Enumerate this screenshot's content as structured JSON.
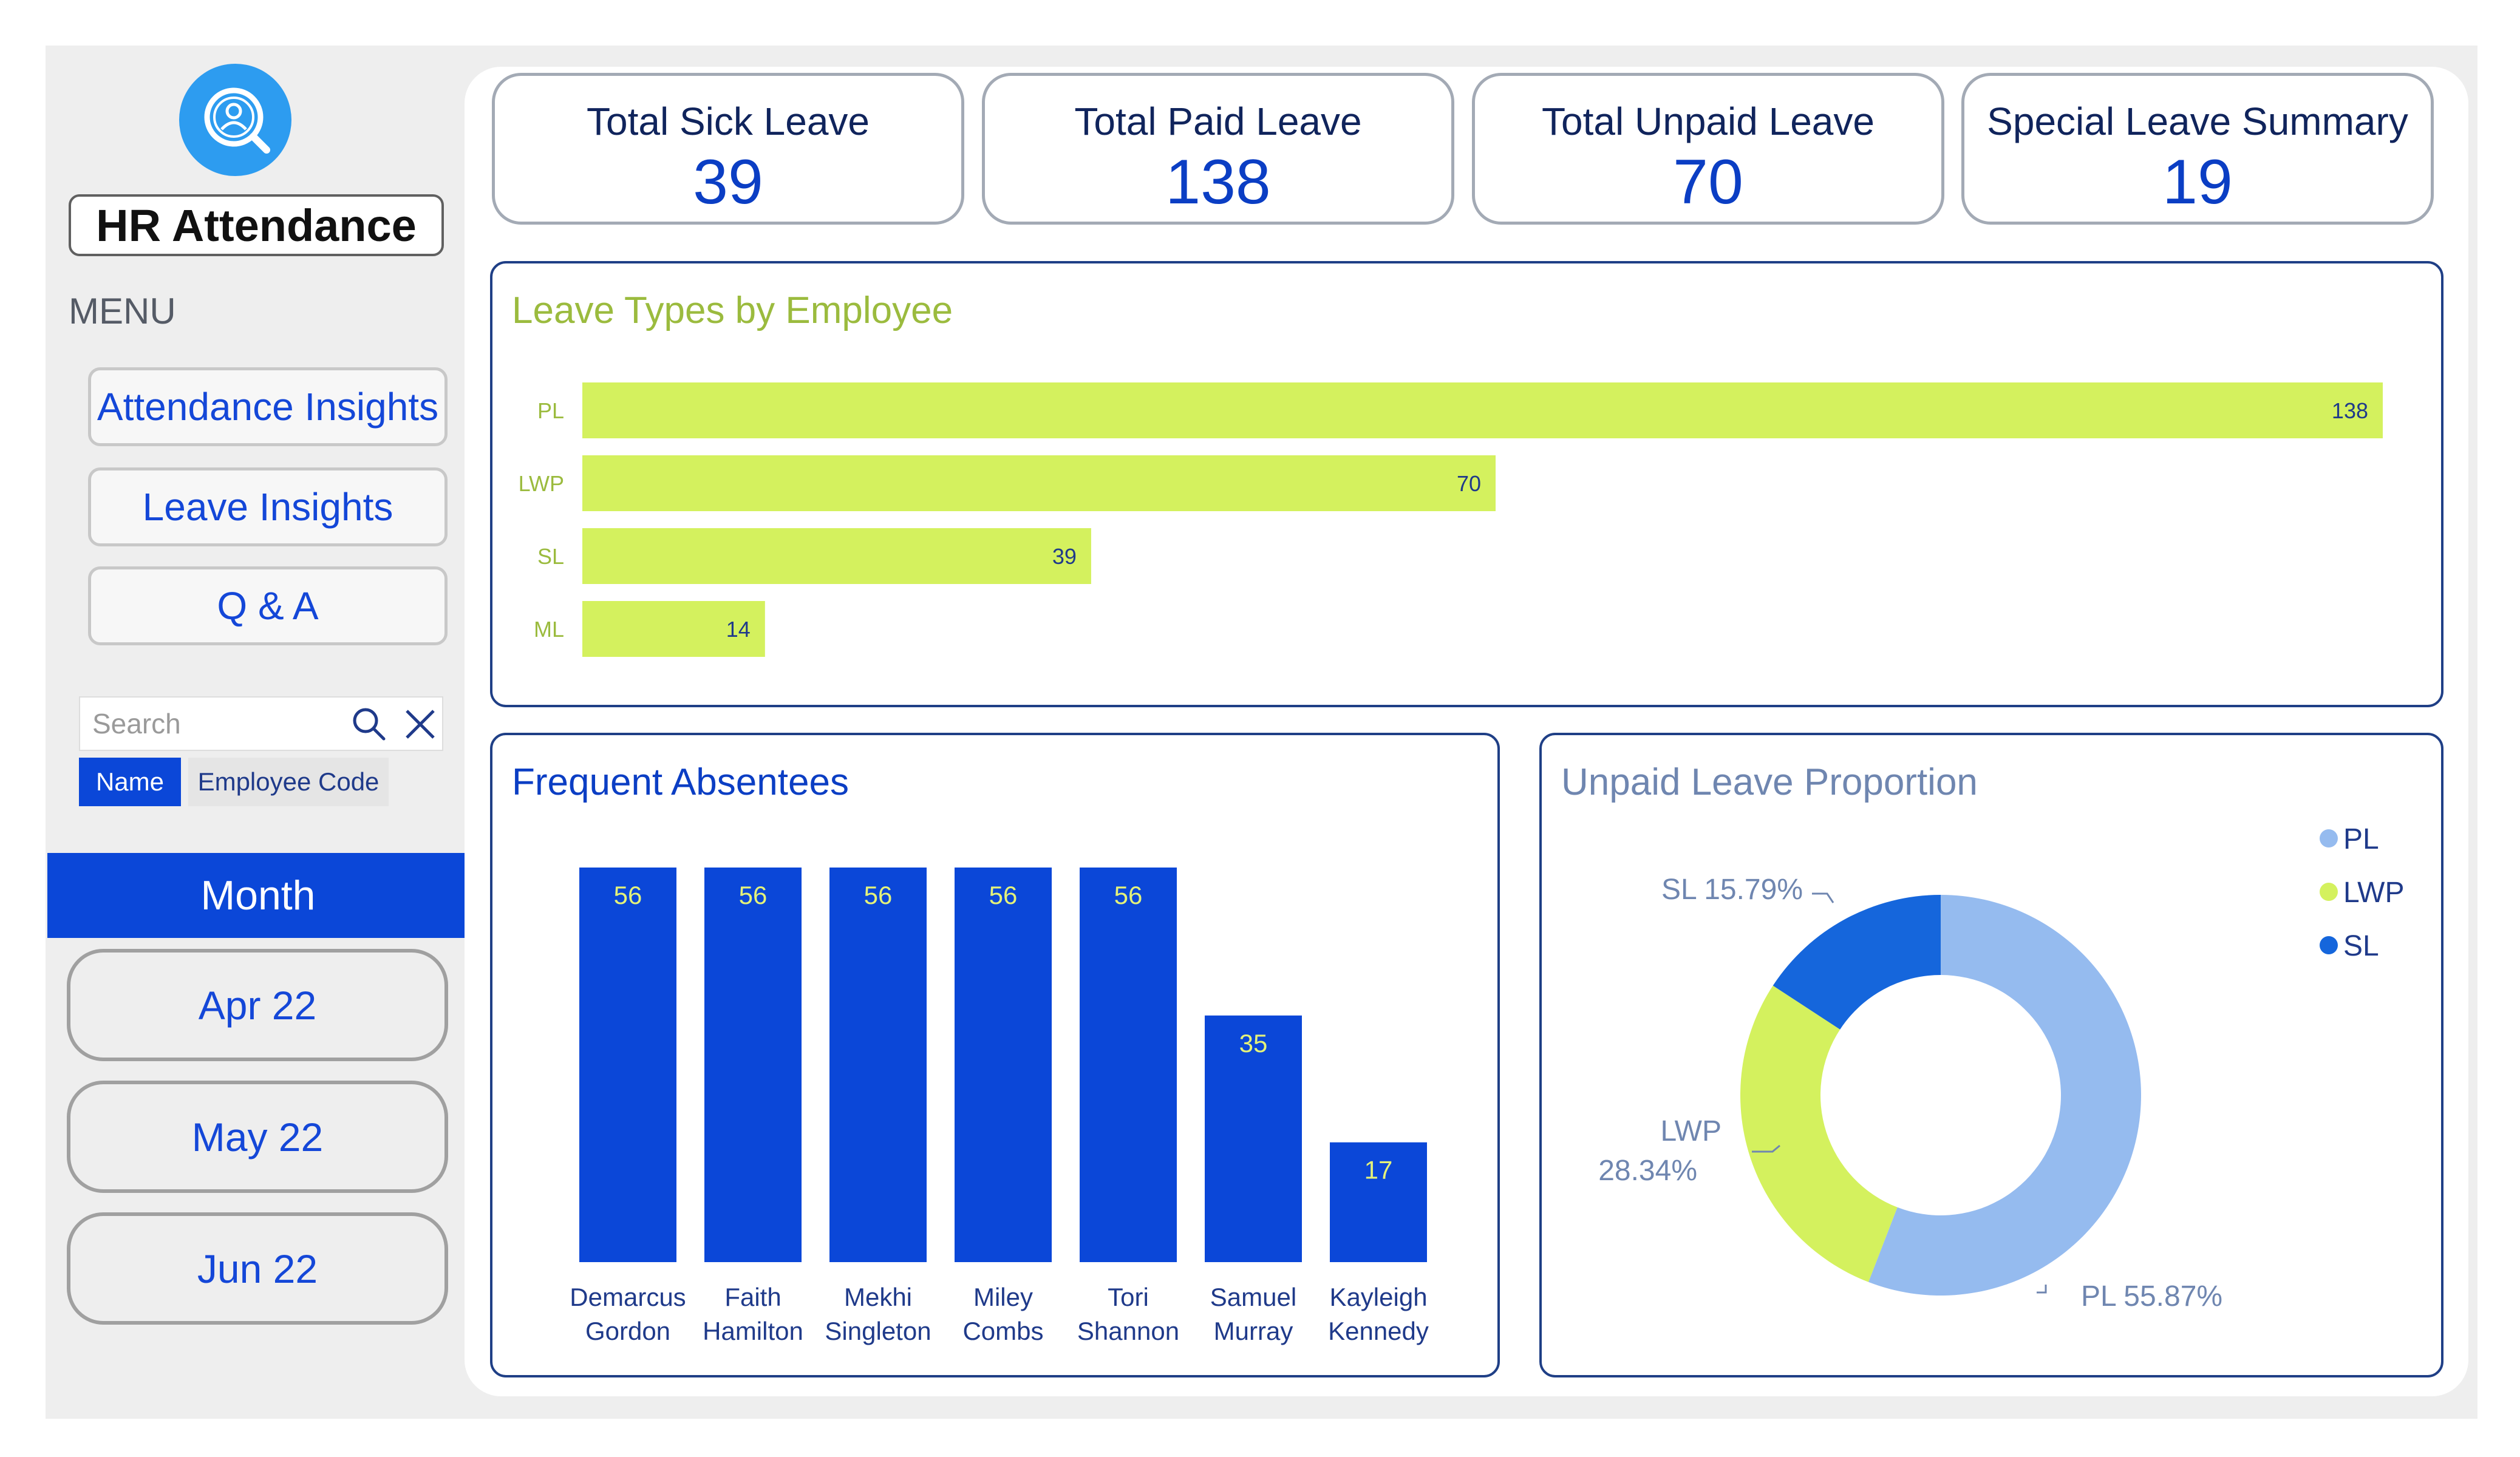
{
  "app": {
    "title": "HR Attendance"
  },
  "sidebar": {
    "menu_heading": "MENU",
    "nav": [
      {
        "label": "Attendance Insights"
      },
      {
        "label": "Leave Insights"
      },
      {
        "label": "Q & A"
      }
    ],
    "search": {
      "placeholder": "Search"
    },
    "filter_options": [
      "Name",
      "Employee Code"
    ],
    "filter_selected": "Name",
    "month_filter": {
      "header": "Month",
      "options": [
        "Apr 22",
        "May 22",
        "Jun 22"
      ]
    }
  },
  "kpis": [
    {
      "label": "Total Sick Leave",
      "value": "39"
    },
    {
      "label": "Total Paid Leave",
      "value": "138"
    },
    {
      "label": "Total Unpaid Leave",
      "value": "70"
    },
    {
      "label": "Special Leave Summary",
      "value": "19"
    }
  ],
  "colors": {
    "accent_blue": "#0b47d8",
    "lime": "#d4f15e",
    "light_blue": "#95bbef",
    "mid_blue": "#1566dc",
    "olive_title": "#9bbb3e"
  },
  "chart_data": [
    {
      "type": "bar",
      "orientation": "horizontal",
      "title": "Leave Types by Employee",
      "categories": [
        "PL",
        "LWP",
        "SL",
        "ML"
      ],
      "values": [
        138,
        70,
        39,
        14
      ],
      "xlim": [
        0,
        138
      ]
    },
    {
      "type": "bar",
      "title": "Frequent Absentees",
      "categories": [
        "Demarcus Gordon",
        "Faith Hamilton",
        "Mekhi Singleton",
        "Miley Combs",
        "Tori Shannon",
        "Samuel Murray",
        "Kayleigh Kennedy"
      ],
      "values": [
        56,
        56,
        56,
        56,
        56,
        35,
        17
      ],
      "ylim": [
        0,
        56
      ]
    },
    {
      "type": "pie",
      "variant": "donut",
      "title": "Unpaid Leave Proportion",
      "categories": [
        "PL",
        "LWP",
        "SL"
      ],
      "values": [
        55.87,
        28.34,
        15.79
      ],
      "slice_labels": [
        "PL 55.87%",
        "LWP 28.34%",
        "SL 15.79%"
      ],
      "legend": [
        "PL",
        "LWP",
        "SL"
      ],
      "legend_position": "top-right"
    }
  ]
}
